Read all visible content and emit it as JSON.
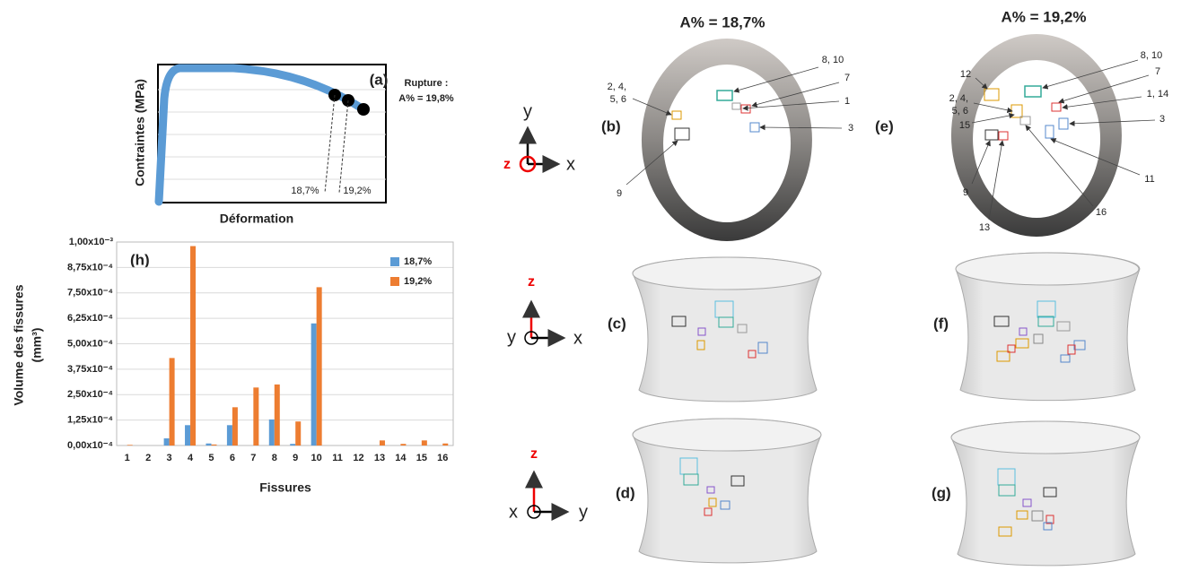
{
  "figure": {
    "panel_a": {
      "label": "(a)",
      "y_label": "Contraintes (MPa)",
      "x_label": "Déformation",
      "marks": [
        "18,7%",
        "19,2%"
      ],
      "rupture": [
        "Rupture :",
        "A% = 19,8%"
      ]
    },
    "titles": [
      "A% = 18,7%",
      "A% = 19,2%"
    ],
    "panels": [
      "(b)",
      "(c)",
      "(d)",
      "(e)",
      "(f)",
      "(g)"
    ],
    "axes": {
      "b": [
        "y",
        "z",
        "x"
      ],
      "c": [
        "z",
        "y",
        "x"
      ],
      "d": [
        "z",
        "x",
        "y"
      ]
    },
    "labels_b": {
      "l1": [
        "2, 4,",
        "5, 6"
      ],
      "l2": "8, 10",
      "l3": "7",
      "l4": "1",
      "l5": "3",
      "l6": "9"
    },
    "labels_e": {
      "l1": "12",
      "l2": "8, 10",
      "l3": "7",
      "l4": [
        "2, 4,",
        "5, 6"
      ],
      "l5": "1, 14",
      "l6": "3",
      "l7": "15",
      "l8": "9",
      "l9": "11",
      "l10": "13",
      "l11": "16"
    }
  },
  "chart_data": {
    "type": "bar",
    "panel_label": "(h)",
    "y_label": [
      "Volume des fissures",
      "(mm³)"
    ],
    "x_label": "Fissures",
    "categories": [
      "1",
      "2",
      "3",
      "4",
      "5",
      "6",
      "7",
      "8",
      "9",
      "10",
      "11",
      "12",
      "13",
      "14",
      "15",
      "16"
    ],
    "series": [
      {
        "name": "18,7%",
        "color": "#5b9bd5",
        "values": [
          0,
          0,
          3.5e-05,
          0.0001,
          1e-05,
          0.0001,
          0,
          0.000128,
          8e-06,
          0.0006,
          0,
          0,
          0,
          0,
          0,
          0
        ]
      },
      {
        "name": "19,2%",
        "color": "#ed7d31",
        "values": [
          3e-06,
          0,
          0.00043,
          0.00098,
          5e-06,
          0.000188,
          0.000285,
          0.0003,
          0.000118,
          0.000778,
          0,
          0,
          2.5e-05,
          8e-06,
          2.5e-05,
          1e-05
        ]
      }
    ],
    "ylim": [
      0,
      0.001
    ],
    "yticks": [
      {
        "value": 0,
        "label": "0,00x10⁻⁴"
      },
      {
        "value": 0.000125,
        "label": "1,25x10⁻⁴"
      },
      {
        "value": 0.00025,
        "label": "2,50x10⁻⁴"
      },
      {
        "value": 0.000375,
        "label": "3,75x10⁻⁴"
      },
      {
        "value": 0.0005,
        "label": "5,00x10⁻⁴"
      },
      {
        "value": 0.000625,
        "label": "6,25x10⁻⁴"
      },
      {
        "value": 0.00075,
        "label": "7,50x10⁻⁴"
      },
      {
        "value": 0.000875,
        "label": "8,75x10⁻⁴"
      },
      {
        "value": 0.001,
        "label": "1,00x10⁻³"
      }
    ],
    "grid": true,
    "legend": "top-right"
  }
}
